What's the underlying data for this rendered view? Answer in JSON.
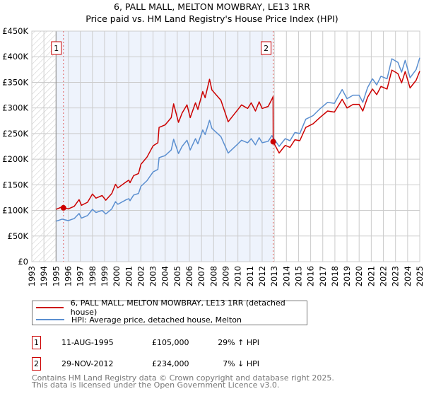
{
  "chart_data": {
    "type": "line",
    "title": "6, PALL MALL, MELTON MOWBRAY, LE13 1RR",
    "subtitle": "Price paid vs. HM Land Registry's House Price Index (HPI)",
    "xlabel": "",
    "ylabel": "",
    "xlim": [
      1993,
      2025
    ],
    "ylim": [
      0,
      450000
    ],
    "x_ticks": [
      "1993",
      "1994",
      "1995",
      "1996",
      "1997",
      "1998",
      "1999",
      "2000",
      "2001",
      "2002",
      "2003",
      "2004",
      "2005",
      "2006",
      "2007",
      "2008",
      "2009",
      "2010",
      "2011",
      "2012",
      "2013",
      "2014",
      "2015",
      "2016",
      "2017",
      "2018",
      "2019",
      "2020",
      "2021",
      "2022",
      "2023",
      "2024",
      "2025"
    ],
    "y_ticks": [
      {
        "value": 0,
        "label": "£0"
      },
      {
        "value": 50000,
        "label": "£50K"
      },
      {
        "value": 100000,
        "label": "£100K"
      },
      {
        "value": 150000,
        "label": "£150K"
      },
      {
        "value": 200000,
        "label": "£200K"
      },
      {
        "value": 250000,
        "label": "£250K"
      },
      {
        "value": 300000,
        "label": "£300K"
      },
      {
        "value": 350000,
        "label": "£350K"
      },
      {
        "value": 400000,
        "label": "£400K"
      },
      {
        "value": 450000,
        "label": "£450K"
      }
    ],
    "grid": true,
    "hatched_range": [
      1993,
      1995
    ],
    "shaded_range": [
      1995,
      2012.91
    ],
    "colors": {
      "property": "#cc0000",
      "hpi": "#5b8fd0",
      "shade": "#eef3fc",
      "grid": "#cccccc"
    },
    "series": [
      {
        "name": "6, PALL MALL, MELTON MOWBRAY, LE13 1RR (detached house)",
        "color": "#cc0000",
        "points": [
          [
            1995.0,
            102
          ],
          [
            1995.5,
            107
          ],
          [
            1996.0,
            103
          ],
          [
            1996.5,
            108
          ],
          [
            1996.9,
            121
          ],
          [
            1997.1,
            110
          ],
          [
            1997.6,
            116
          ],
          [
            1998.0,
            132
          ],
          [
            1998.3,
            124
          ],
          [
            1998.8,
            129
          ],
          [
            1999.1,
            120
          ],
          [
            1999.6,
            133
          ],
          [
            1999.9,
            151
          ],
          [
            2000.1,
            144
          ],
          [
            2000.8,
            156
          ],
          [
            2001.0,
            159
          ],
          [
            2001.1,
            154
          ],
          [
            2001.4,
            168
          ],
          [
            2001.8,
            172
          ],
          [
            2002.0,
            190
          ],
          [
            2002.5,
            204
          ],
          [
            2003.0,
            226
          ],
          [
            2003.4,
            232
          ],
          [
            2003.5,
            262
          ],
          [
            2004.0,
            267
          ],
          [
            2004.5,
            281
          ],
          [
            2004.7,
            308
          ],
          [
            2005.1,
            272
          ],
          [
            2005.4,
            290
          ],
          [
            2005.8,
            306
          ],
          [
            2006.07,
            281
          ],
          [
            2006.5,
            310
          ],
          [
            2006.7,
            297
          ],
          [
            2007.1,
            332
          ],
          [
            2007.3,
            320
          ],
          [
            2007.66,
            356
          ],
          [
            2007.86,
            335
          ],
          [
            2008.6,
            315
          ],
          [
            2009.2,
            273
          ],
          [
            2010.0,
            297
          ],
          [
            2010.3,
            306
          ],
          [
            2010.8,
            299
          ],
          [
            2011.1,
            310
          ],
          [
            2011.45,
            294
          ],
          [
            2011.75,
            312
          ],
          [
            2012.0,
            299
          ],
          [
            2012.5,
            303
          ],
          [
            2012.8,
            317
          ],
          [
            2012.9,
            322
          ],
          [
            2012.91,
            234
          ],
          [
            2013.4,
            212
          ],
          [
            2013.9,
            227
          ],
          [
            2014.3,
            223
          ],
          [
            2014.7,
            238
          ],
          [
            2015.1,
            236
          ],
          [
            2015.6,
            262
          ],
          [
            2016.2,
            269
          ],
          [
            2016.8,
            282
          ],
          [
            2017.4,
            294
          ],
          [
            2017.96,
            292
          ],
          [
            2018.6,
            317
          ],
          [
            2019.0,
            300
          ],
          [
            2019.5,
            307
          ],
          [
            2020.0,
            307
          ],
          [
            2020.3,
            294
          ],
          [
            2020.7,
            321
          ],
          [
            2021.1,
            337
          ],
          [
            2021.45,
            326
          ],
          [
            2021.8,
            342
          ],
          [
            2022.3,
            337
          ],
          [
            2022.7,
            374
          ],
          [
            2023.2,
            367
          ],
          [
            2023.5,
            349
          ],
          [
            2023.8,
            371
          ],
          [
            2024.2,
            339
          ],
          [
            2024.7,
            354
          ],
          [
            2025.0,
            372
          ]
        ]
      },
      {
        "name": "HPI: Average price, detached house, Melton",
        "color": "#5b8fd0",
        "points": [
          [
            1995.0,
            79
          ],
          [
            1995.5,
            83
          ],
          [
            1996.0,
            80
          ],
          [
            1996.5,
            84
          ],
          [
            1996.9,
            94
          ],
          [
            1997.1,
            85
          ],
          [
            1997.6,
            90
          ],
          [
            1998.0,
            102
          ],
          [
            1998.3,
            96
          ],
          [
            1998.8,
            100
          ],
          [
            1999.1,
            93
          ],
          [
            1999.6,
            103
          ],
          [
            1999.9,
            117
          ],
          [
            2000.1,
            112
          ],
          [
            2000.8,
            121
          ],
          [
            2001.0,
            123
          ],
          [
            2001.1,
            119
          ],
          [
            2001.4,
            130
          ],
          [
            2001.8,
            133
          ],
          [
            2002.0,
            147
          ],
          [
            2002.5,
            158
          ],
          [
            2003.0,
            175
          ],
          [
            2003.4,
            180
          ],
          [
            2003.5,
            203
          ],
          [
            2004.0,
            207
          ],
          [
            2004.5,
            218
          ],
          [
            2004.7,
            239
          ],
          [
            2005.1,
            211
          ],
          [
            2005.4,
            225
          ],
          [
            2005.8,
            237
          ],
          [
            2006.07,
            218
          ],
          [
            2006.5,
            240
          ],
          [
            2006.7,
            230
          ],
          [
            2007.1,
            257
          ],
          [
            2007.3,
            248
          ],
          [
            2007.66,
            276
          ],
          [
            2007.86,
            260
          ],
          [
            2008.6,
            244
          ],
          [
            2009.2,
            212
          ],
          [
            2010.0,
            230
          ],
          [
            2010.3,
            237
          ],
          [
            2010.8,
            232
          ],
          [
            2011.1,
            240
          ],
          [
            2011.45,
            228
          ],
          [
            2011.75,
            242
          ],
          [
            2012.0,
            232
          ],
          [
            2012.5,
            235
          ],
          [
            2012.8,
            246
          ],
          [
            2013.4,
            225
          ],
          [
            2013.9,
            240
          ],
          [
            2014.3,
            236
          ],
          [
            2014.7,
            252
          ],
          [
            2015.1,
            250
          ],
          [
            2015.6,
            278
          ],
          [
            2016.2,
            285
          ],
          [
            2016.8,
            299
          ],
          [
            2017.4,
            311
          ],
          [
            2017.96,
            309
          ],
          [
            2018.6,
            336
          ],
          [
            2019.0,
            318
          ],
          [
            2019.5,
            325
          ],
          [
            2020.0,
            325
          ],
          [
            2020.3,
            311
          ],
          [
            2020.7,
            340
          ],
          [
            2021.1,
            357
          ],
          [
            2021.45,
            345
          ],
          [
            2021.8,
            362
          ],
          [
            2022.3,
            357
          ],
          [
            2022.7,
            396
          ],
          [
            2023.2,
            389
          ],
          [
            2023.5,
            370
          ],
          [
            2023.8,
            393
          ],
          [
            2024.2,
            359
          ],
          [
            2024.7,
            375
          ],
          [
            2025.0,
            398
          ]
        ]
      }
    ],
    "value_unit": "thousands GBP",
    "sales": [
      {
        "marker": "1",
        "year": 1995.61,
        "value": 105
      },
      {
        "marker": "2",
        "year": 2012.91,
        "value": 234
      }
    ]
  },
  "legend": {
    "property": "6, PALL MALL, MELTON MOWBRAY, LE13 1RR (detached house)",
    "hpi": "HPI: Average price, detached house, Melton"
  },
  "sales_table": [
    {
      "marker": "1",
      "date": "11-AUG-1995",
      "price": "£105,000",
      "hpi": "29% ↑ HPI"
    },
    {
      "marker": "2",
      "date": "29-NOV-2012",
      "price": "£234,000",
      "hpi": "7% ↓ HPI"
    }
  ],
  "footer": {
    "line1": "Contains HM Land Registry data © Crown copyright and database right 2025.",
    "line2": "This data is licensed under the Open Government Licence v3.0."
  }
}
